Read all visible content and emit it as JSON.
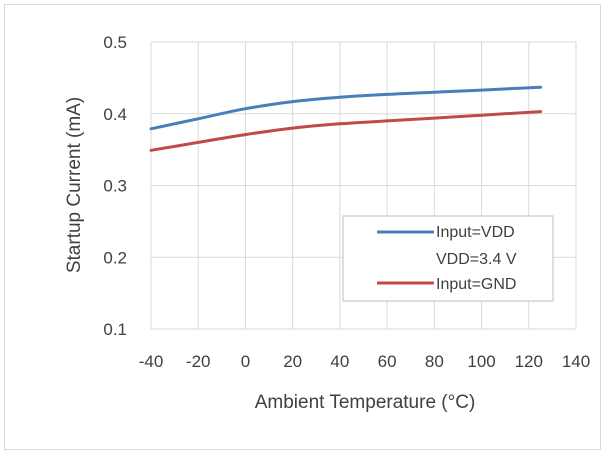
{
  "chart_data": {
    "type": "line",
    "title": "",
    "xlabel": "Ambient Temperature (°C)",
    "ylabel": "Startup Current (mA)",
    "xlim": [
      -40,
      140
    ],
    "ylim": [
      0.1,
      0.5
    ],
    "x_ticks": [
      "-40",
      "-20",
      "0",
      "20",
      "40",
      "60",
      "80",
      "100",
      "120",
      "140"
    ],
    "x_tick_values": [
      -40,
      -20,
      0,
      20,
      40,
      60,
      80,
      100,
      120,
      140
    ],
    "y_ticks": [
      "0.1",
      "0.2",
      "0.3",
      "0.4",
      "0.5"
    ],
    "y_tick_values": [
      0.1,
      0.2,
      0.3,
      0.4,
      0.5
    ],
    "grid": true,
    "legend_position": "bottom-right",
    "legend_note": "VDD=3.4 V",
    "series": [
      {
        "name": "Input=VDD",
        "color": "#4a7ebb",
        "x": [
          -40,
          -20,
          0,
          20,
          40,
          60,
          80,
          100,
          125
        ],
        "values": [
          0.379,
          0.393,
          0.407,
          0.417,
          0.423,
          0.427,
          0.43,
          0.433,
          0.437
        ]
      },
      {
        "name": "Input=GND",
        "color": "#be4b48",
        "x": [
          -40,
          -20,
          0,
          20,
          40,
          60,
          80,
          100,
          125
        ],
        "values": [
          0.349,
          0.36,
          0.371,
          0.38,
          0.386,
          0.39,
          0.394,
          0.398,
          0.403
        ]
      }
    ]
  }
}
